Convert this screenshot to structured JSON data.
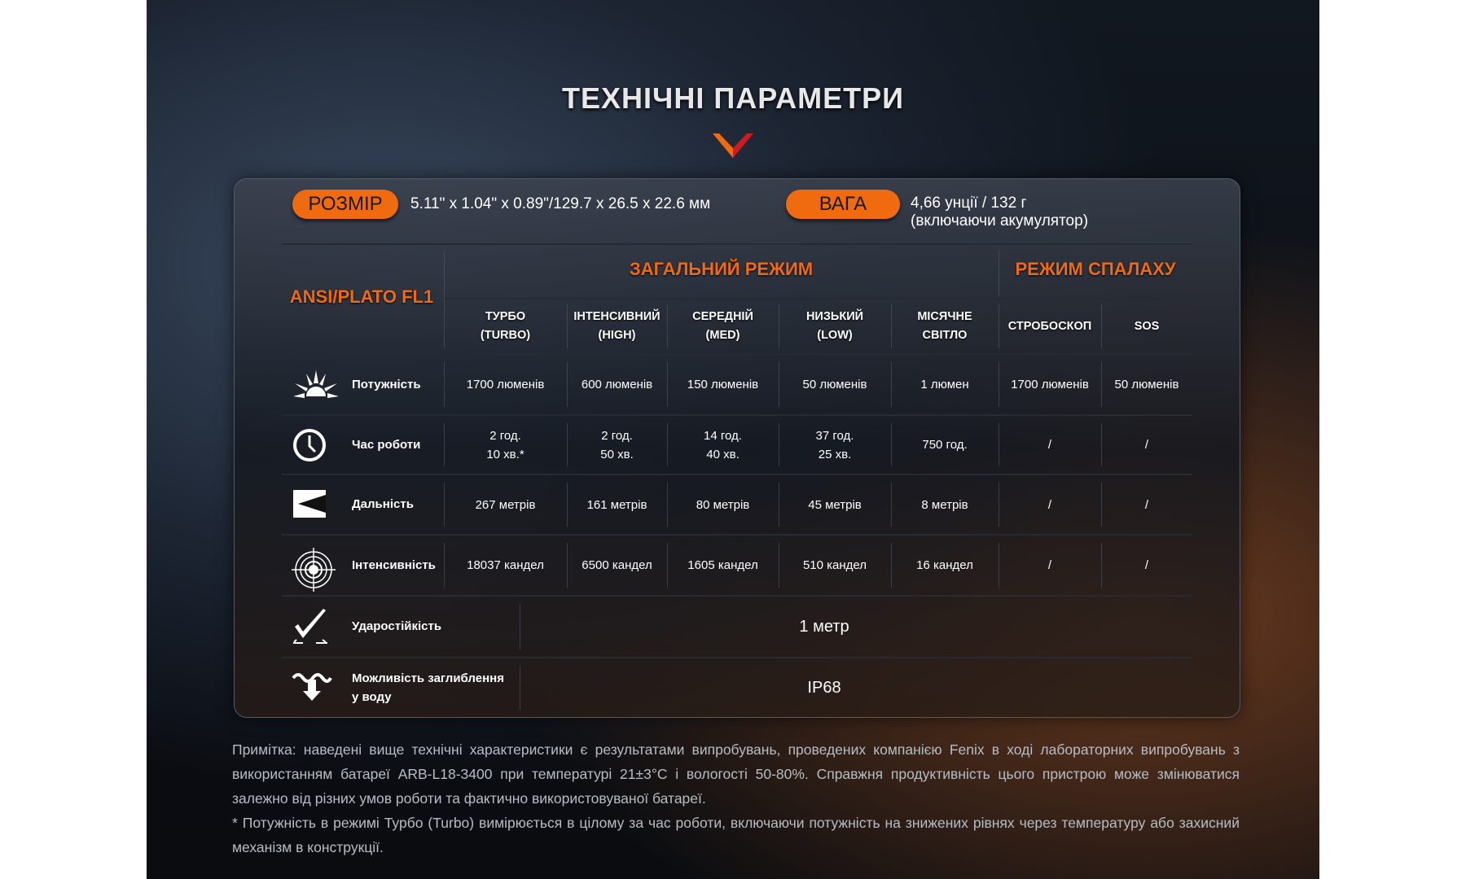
{
  "title": "ТЕХНІЧНІ ПАРАМЕТРИ",
  "size": {
    "label": "РОЗМІР",
    "value": "5.11\" x 1.04\" x 0.89\"/129.7 x 26.5 x 22.6 мм"
  },
  "weight": {
    "label": "ВАГА",
    "value_line1": "4,66 унції / 132 г",
    "value_line2": "(включаючи акумулятор)"
  },
  "table": {
    "standard": "ANSI/PLATO FL1",
    "group_general": "ЗАГАЛЬНИЙ РЕЖИМ",
    "group_flash": "РЕЖИМ СПАЛАХУ",
    "columns": [
      [
        "ТУРБО",
        "(TURBO)"
      ],
      [
        "ІНТЕНСИВНИЙ",
        "(HIGH)"
      ],
      [
        "СЕРЕДНІЙ",
        "(MED)"
      ],
      [
        "НИЗЬКИЙ",
        "(LOW)"
      ],
      [
        "МІСЯЧНЕ",
        "СВІТЛО"
      ],
      [
        "СТРОБОСКОП",
        ""
      ],
      [
        "SOS",
        ""
      ]
    ],
    "rows": [
      {
        "label": "Потужність",
        "icon": "sunburst-icon",
        "cells": [
          [
            "1700 люменів"
          ],
          [
            "600 люменів"
          ],
          [
            "150 люменів"
          ],
          [
            "50 люменів"
          ],
          [
            "1 люмен"
          ],
          [
            "1700 люменів"
          ],
          [
            "50 люменів"
          ]
        ]
      },
      {
        "label": "Час роботи",
        "icon": "clock-icon",
        "cells": [
          [
            "2 год.",
            "10 хв.*"
          ],
          [
            "2 год.",
            "50 хв."
          ],
          [
            "14 год.",
            "40 хв."
          ],
          [
            "37 год.",
            "25 хв."
          ],
          [
            "750 год."
          ],
          [
            "/"
          ],
          [
            "/"
          ]
        ]
      },
      {
        "label": "Дальність",
        "icon": "beam-distance-icon",
        "cells": [
          [
            "267 метрів"
          ],
          [
            "161 метрів"
          ],
          [
            "80 метрів"
          ],
          [
            "45 метрів"
          ],
          [
            "8 метрів"
          ],
          [
            "/"
          ],
          [
            "/"
          ]
        ]
      },
      {
        "label": "Інтенсивність",
        "icon": "target-icon",
        "cells": [
          [
            "18037 кандел"
          ],
          [
            "6500 кандел"
          ],
          [
            "1605 кандел"
          ],
          [
            "510 кандел"
          ],
          [
            "16 кандел"
          ],
          [
            "/"
          ],
          [
            "/"
          ]
        ]
      }
    ],
    "wide_rows": [
      {
        "label_line1": "Ударостійкість",
        "label_line2": "",
        "icon": "impact-check-icon",
        "value": "1 метр"
      },
      {
        "label_line1": "Можливість заглиблення",
        "label_line2": "у воду",
        "icon": "water-submersion-icon",
        "value": "IP68"
      }
    ]
  },
  "note": {
    "line1": "Примітка: наведені вище технічні характеристики є результатами випробувань, проведених компанією Fenix в ході лабораторних випробувань з використанням батареї ARB-L18-3400 при температурі 21±3°C і вологості 50-80%. Справжня продуктивність цього пристрою може змінюватися залежно від різних умов роботи та фактично використовуваної батареї.",
    "line2": "* Потужність в режимі Турбо (Turbo) вимірюється в цілому за час роботи, включаючи потужність на знижених рівнях через температуру або захисний механізм в конструкції."
  },
  "colors": {
    "accent": "#f06a10"
  }
}
